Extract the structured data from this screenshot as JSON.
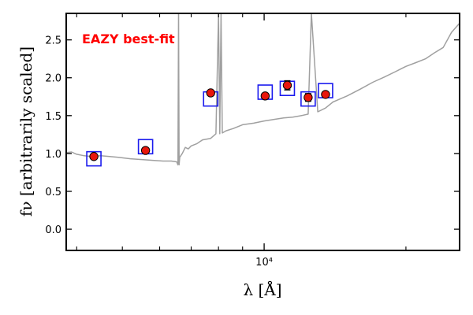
{
  "chart_data": {
    "type": "scatter",
    "annotation": "EAZY best-fit",
    "xlabel": "λ [Å]",
    "ylabel": "fν [arbitrarily scaled]",
    "x_scale": "log",
    "xlim": [
      3800,
      26000
    ],
    "ylim": [
      -0.28,
      2.85
    ],
    "grid": false,
    "y_ticks": [
      0.0,
      0.5,
      1.0,
      1.5,
      2.0,
      2.5
    ],
    "y_tick_labels": [
      "0.0",
      "0.5",
      "1.0",
      "1.5",
      "2.0",
      "2.5"
    ],
    "x_tick_labels": [
      {
        "value": 10000,
        "label": "10⁴"
      }
    ],
    "colors": {
      "model": "#a0a0a0",
      "model_flux": "#1a1aee",
      "observed": "#e8160c",
      "annotation": "#ff0000"
    },
    "series": [
      {
        "kind": "line",
        "x": [
          3800,
          3900,
          4000,
          4150,
          4300,
          4500,
          4700,
          4900,
          5200,
          5500,
          5800,
          6100,
          6350,
          6520,
          6560,
          6580,
          6600,
          6620,
          6700,
          6800,
          6900,
          7000,
          7200,
          7400,
          7700,
          7900,
          8000,
          8050,
          8100,
          8150,
          8300,
          8600,
          9000,
          9500,
          10000,
          10500,
          11000,
          11500,
          12000,
          12400,
          12600,
          13000,
          13500,
          14000,
          15000,
          16000,
          17000,
          18000,
          19000,
          20000,
          21000,
          22000,
          23000,
          24000,
          25000,
          26000
        ],
        "y": [
          1.01,
          1.02,
          0.99,
          0.97,
          0.96,
          0.97,
          0.96,
          0.95,
          0.93,
          0.92,
          0.91,
          0.9,
          0.9,
          0.89,
          0.85,
          2.85,
          0.85,
          0.95,
          1.0,
          1.08,
          1.06,
          1.1,
          1.13,
          1.18,
          1.2,
          1.26,
          2.85,
          1.26,
          2.85,
          1.27,
          1.3,
          1.33,
          1.38,
          1.4,
          1.43,
          1.45,
          1.47,
          1.48,
          1.5,
          1.52,
          2.85,
          1.55,
          1.6,
          1.68,
          1.76,
          1.85,
          1.94,
          2.01,
          2.08,
          2.15,
          2.2,
          2.25,
          2.33,
          2.4,
          2.6,
          2.72
        ]
      },
      {
        "kind": "model_flux",
        "x": [
          4350,
          5600,
          7700,
          10050,
          11200,
          12400,
          13500
        ],
        "y": [
          0.93,
          1.09,
          1.72,
          1.81,
          1.86,
          1.72,
          1.83
        ]
      },
      {
        "kind": "observed",
        "x": [
          4350,
          5600,
          7700,
          10050,
          11200,
          12400,
          13500
        ],
        "y": [
          0.96,
          1.04,
          1.8,
          1.76,
          1.9,
          1.74,
          1.78
        ],
        "yerr": [
          0.0,
          0.0,
          0.0,
          0.0,
          0.06,
          0.05,
          0.0
        ]
      }
    ]
  }
}
